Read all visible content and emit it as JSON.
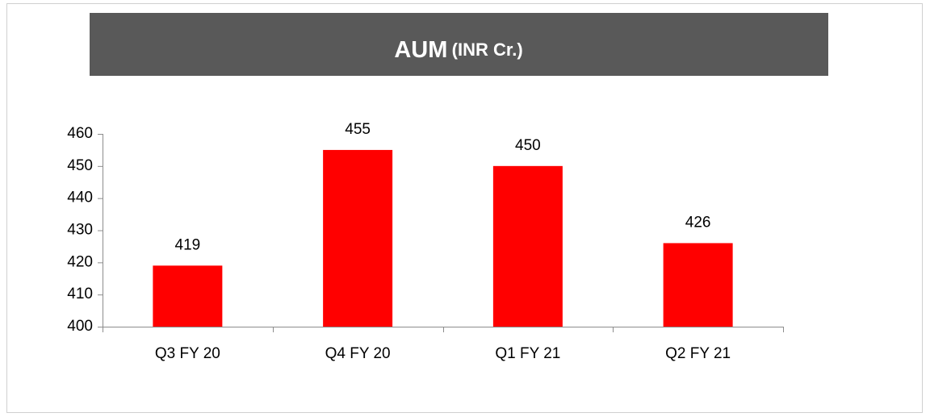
{
  "chart_data": {
    "type": "bar",
    "title": "AUM",
    "title_unit": "(INR Cr.)",
    "categories": [
      "Q3 FY 20",
      "Q4 FY 20",
      "Q1 FY 21",
      "Q2 FY 21"
    ],
    "values": [
      419,
      455,
      450,
      426
    ],
    "color": "#ff0000",
    "ylim": [
      400,
      460
    ],
    "yticks": [
      400,
      410,
      420,
      430,
      440,
      450,
      460
    ],
    "grid": false
  }
}
